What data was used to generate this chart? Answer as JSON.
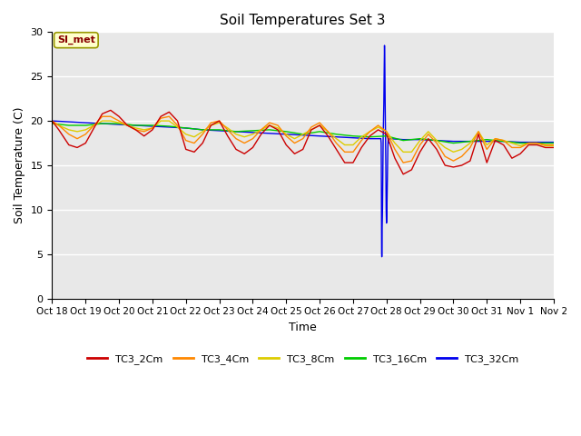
{
  "title": "Soil Temperatures Set 3",
  "xlabel": "Time",
  "ylabel": "Soil Temperature (C)",
  "ylim": [
    0,
    30
  ],
  "xlim": [
    0,
    15
  ],
  "bg_color": "#e8e8e8",
  "series_order": [
    "TC3_32Cm",
    "TC3_16Cm",
    "TC3_8Cm",
    "TC3_4Cm",
    "TC3_2Cm"
  ],
  "series": {
    "TC3_2Cm": {
      "color": "#cc0000",
      "x": [
        0,
        0.2,
        0.5,
        0.75,
        1.0,
        1.25,
        1.5,
        1.75,
        2.0,
        2.25,
        2.5,
        2.75,
        3.0,
        3.25,
        3.5,
        3.75,
        4.0,
        4.25,
        4.5,
        4.75,
        5.0,
        5.25,
        5.5,
        5.75,
        6.0,
        6.25,
        6.5,
        6.75,
        7.0,
        7.25,
        7.5,
        7.75,
        8.0,
        8.25,
        8.5,
        8.75,
        9.0,
        9.25,
        9.5,
        9.75,
        10.0,
        10.25,
        10.5,
        10.75,
        11.0,
        11.25,
        11.5,
        11.75,
        12.0,
        12.25,
        12.5,
        12.75,
        13.0,
        13.25,
        13.5,
        13.75,
        14.0,
        14.25,
        14.5,
        14.75,
        15.0
      ],
      "y": [
        20.0,
        19.0,
        17.3,
        17.0,
        17.5,
        19.2,
        20.8,
        21.2,
        20.5,
        19.5,
        19.0,
        18.3,
        19.0,
        20.5,
        21.0,
        20.0,
        16.8,
        16.5,
        17.5,
        19.5,
        20.0,
        18.3,
        16.8,
        16.3,
        17.0,
        18.5,
        19.5,
        19.0,
        17.3,
        16.3,
        16.8,
        19.0,
        19.5,
        18.3,
        16.8,
        15.3,
        15.3,
        17.0,
        18.3,
        19.0,
        18.5,
        15.8,
        14.0,
        14.5,
        16.5,
        18.0,
        16.8,
        15.0,
        14.8,
        15.0,
        15.5,
        18.5,
        15.3,
        17.8,
        17.3,
        15.8,
        16.3,
        17.3,
        17.3,
        17.0,
        17.0
      ]
    },
    "TC3_4Cm": {
      "color": "#ff8800",
      "x": [
        0,
        0.2,
        0.5,
        0.75,
        1.0,
        1.25,
        1.5,
        1.75,
        2.0,
        2.25,
        2.5,
        2.75,
        3.0,
        3.25,
        3.5,
        3.75,
        4.0,
        4.25,
        4.5,
        4.75,
        5.0,
        5.25,
        5.5,
        5.75,
        6.0,
        6.25,
        6.5,
        6.75,
        7.0,
        7.25,
        7.5,
        7.75,
        8.0,
        8.25,
        8.5,
        8.75,
        9.0,
        9.25,
        9.5,
        9.75,
        10.0,
        10.25,
        10.5,
        10.75,
        11.0,
        11.25,
        11.5,
        11.75,
        12.0,
        12.25,
        12.5,
        12.75,
        13.0,
        13.25,
        13.5,
        13.75,
        14.0,
        14.25,
        14.5,
        14.75,
        15.0
      ],
      "y": [
        20.0,
        19.5,
        18.5,
        18.0,
        18.5,
        19.5,
        20.5,
        20.5,
        20.0,
        19.5,
        19.0,
        18.8,
        19.2,
        20.3,
        20.5,
        19.5,
        17.8,
        17.5,
        18.5,
        19.8,
        20.0,
        19.0,
        18.0,
        17.5,
        18.0,
        19.0,
        19.8,
        19.5,
        18.3,
        17.5,
        18.0,
        19.3,
        19.8,
        18.8,
        17.5,
        16.5,
        16.5,
        17.8,
        18.8,
        19.5,
        18.8,
        16.8,
        15.3,
        15.5,
        17.3,
        18.5,
        17.5,
        16.0,
        15.5,
        16.0,
        17.0,
        18.8,
        16.8,
        18.0,
        17.8,
        17.0,
        17.0,
        17.5,
        17.5,
        17.3,
        17.3
      ]
    },
    "TC3_8Cm": {
      "color": "#ddcc00",
      "x": [
        0,
        0.2,
        0.5,
        0.75,
        1.0,
        1.25,
        1.5,
        1.75,
        2.0,
        2.25,
        2.5,
        2.75,
        3.0,
        3.25,
        3.5,
        3.75,
        4.0,
        4.25,
        4.5,
        4.75,
        5.0,
        5.25,
        5.5,
        5.75,
        6.0,
        6.25,
        6.5,
        6.75,
        7.0,
        7.25,
        7.5,
        7.75,
        8.0,
        8.25,
        8.5,
        8.75,
        9.0,
        9.25,
        9.5,
        9.75,
        10.0,
        10.25,
        10.5,
        10.75,
        11.0,
        11.25,
        11.5,
        11.75,
        12.0,
        12.25,
        12.5,
        12.75,
        13.0,
        13.25,
        13.5,
        13.75,
        14.0,
        14.25,
        14.5,
        14.75,
        15.0
      ],
      "y": [
        19.8,
        19.5,
        19.0,
        18.8,
        19.0,
        19.5,
        20.0,
        20.0,
        19.8,
        19.5,
        19.2,
        19.0,
        19.2,
        20.0,
        20.0,
        19.3,
        18.5,
        18.2,
        18.8,
        19.5,
        19.8,
        19.2,
        18.5,
        18.2,
        18.5,
        19.0,
        19.5,
        19.2,
        18.5,
        18.0,
        18.5,
        19.0,
        19.5,
        18.8,
        18.0,
        17.3,
        17.3,
        18.2,
        18.8,
        19.3,
        18.8,
        17.5,
        16.5,
        16.5,
        17.8,
        18.8,
        17.8,
        17.0,
        16.5,
        16.8,
        17.5,
        18.8,
        17.3,
        18.0,
        17.8,
        17.5,
        17.2,
        17.5,
        17.5,
        17.2,
        17.2
      ]
    },
    "TC3_16Cm": {
      "color": "#00cc00",
      "x": [
        0,
        0.5,
        1.0,
        1.5,
        2.0,
        2.5,
        3.0,
        3.5,
        4.0,
        4.5,
        5.0,
        5.5,
        6.0,
        6.5,
        7.0,
        7.5,
        8.0,
        8.5,
        9.0,
        9.5,
        10.0,
        10.5,
        11.0,
        11.5,
        12.0,
        12.5,
        13.0,
        13.5,
        14.0,
        14.5,
        15.0
      ],
      "y": [
        19.7,
        19.5,
        19.5,
        19.7,
        19.7,
        19.5,
        19.5,
        19.4,
        19.2,
        19.0,
        19.0,
        18.8,
        18.9,
        19.0,
        18.8,
        18.5,
        18.8,
        18.5,
        18.3,
        18.2,
        18.3,
        17.8,
        18.0,
        17.8,
        17.5,
        17.7,
        17.9,
        17.7,
        17.5,
        17.5,
        17.5
      ]
    },
    "TC3_32Cm": {
      "color": "#0000ee",
      "x": [
        0,
        0.5,
        1.0,
        1.5,
        2.0,
        2.5,
        3.0,
        3.5,
        4.0,
        4.5,
        5.0,
        5.5,
        6.0,
        6.5,
        7.0,
        7.5,
        8.0,
        8.5,
        9.0,
        9.5,
        9.83,
        9.84,
        9.845,
        9.85,
        9.855,
        9.86,
        9.865,
        9.87,
        9.88,
        9.89,
        9.9,
        9.91,
        9.92,
        9.93,
        9.94,
        9.95,
        9.96,
        9.97,
        9.98,
        9.99,
        10.0,
        10.01,
        10.02,
        10.03,
        10.04,
        10.05,
        10.06,
        10.07,
        10.08,
        10.09,
        10.1,
        10.5,
        11.0,
        11.5,
        12.0,
        12.5,
        13.0,
        13.5,
        14.0,
        14.5,
        15.0
      ],
      "y": [
        20.0,
        19.9,
        19.8,
        19.7,
        19.6,
        19.5,
        19.4,
        19.3,
        19.2,
        19.0,
        18.9,
        18.8,
        18.7,
        18.6,
        18.5,
        18.4,
        18.3,
        18.2,
        18.1,
        18.0,
        18.0,
        17.5,
        15.0,
        10.0,
        5.0,
        4.7,
        5.0,
        8.0,
        10.0,
        14.0,
        18.0,
        20.0,
        22.0,
        25.5,
        28.5,
        26.5,
        22.0,
        18.5,
        15.0,
        10.0,
        8.5,
        9.5,
        12.0,
        14.5,
        17.0,
        18.0,
        17.5,
        17.8,
        18.0,
        18.0,
        18.0,
        17.9,
        17.9,
        17.8,
        17.7,
        17.7,
        17.7,
        17.7,
        17.6,
        17.6,
        17.6
      ]
    }
  },
  "xtick_positions": [
    0,
    1,
    2,
    3,
    4,
    5,
    6,
    7,
    8,
    9,
    10,
    11,
    12,
    13,
    14,
    15
  ],
  "xtick_labels": [
    "Oct 18",
    "Oct 19",
    "Oct 20",
    "Oct 21",
    "Oct 22",
    "Oct 23",
    "Oct 24",
    "Oct 25",
    "Oct 26",
    "Oct 27",
    "Oct 28",
    "Oct 29",
    "Oct 30",
    "Oct 31",
    "Nov 1",
    "Nov 2"
  ],
  "ytick_positions": [
    0,
    5,
    10,
    15,
    20,
    25,
    30
  ],
  "annotation_text": "SI_met",
  "legend_labels": [
    "TC3_2Cm",
    "TC3_4Cm",
    "TC3_8Cm",
    "TC3_16Cm",
    "TC3_32Cm"
  ],
  "legend_colors": [
    "#cc0000",
    "#ff8800",
    "#ddcc00",
    "#00cc00",
    "#0000ee"
  ]
}
